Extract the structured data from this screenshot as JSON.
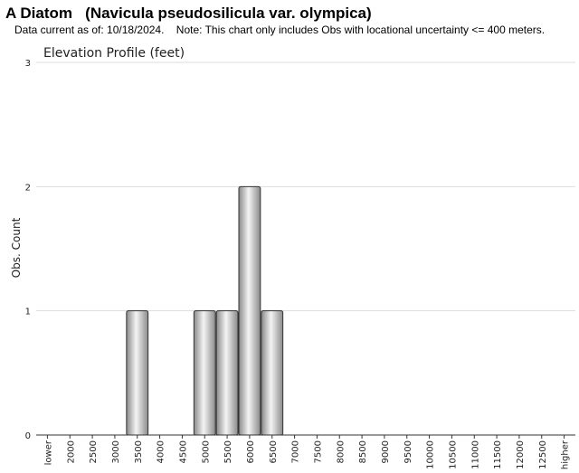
{
  "header": {
    "title": "A Diatom   (Navicula pseudosilicula var. olympica)",
    "subtitle": "Data current as of: 10/18/2024.    Note: This chart only includes Obs with locational uncertainty <= 400 meters."
  },
  "chart_data": {
    "type": "bar",
    "title": "Elevation Profile (feet)",
    "xlabel": "",
    "ylabel": "Obs. Count",
    "ylim": [
      0,
      3
    ],
    "yticks": [
      0,
      1,
      2,
      3
    ],
    "grid": true,
    "legend": "none",
    "categories": [
      "lower",
      "2000",
      "2500",
      "3000",
      "3500",
      "4000",
      "4500",
      "5000",
      "5500",
      "6000",
      "6500",
      "7000",
      "7500",
      "8000",
      "8500",
      "9000",
      "9500",
      "10000",
      "10500",
      "11000",
      "11500",
      "12000",
      "12500",
      "higher"
    ],
    "values": [
      0,
      0,
      0,
      0,
      1,
      0,
      0,
      1,
      1,
      2,
      1,
      0,
      0,
      0,
      0,
      0,
      0,
      0,
      0,
      0,
      0,
      0,
      0,
      0
    ]
  },
  "colors": {
    "bar_edge": "#333333",
    "bar_mid": "#f4f4f4",
    "bar_dark": "#8a8a8a",
    "grid": "#dddddd",
    "axis": "#333333"
  }
}
